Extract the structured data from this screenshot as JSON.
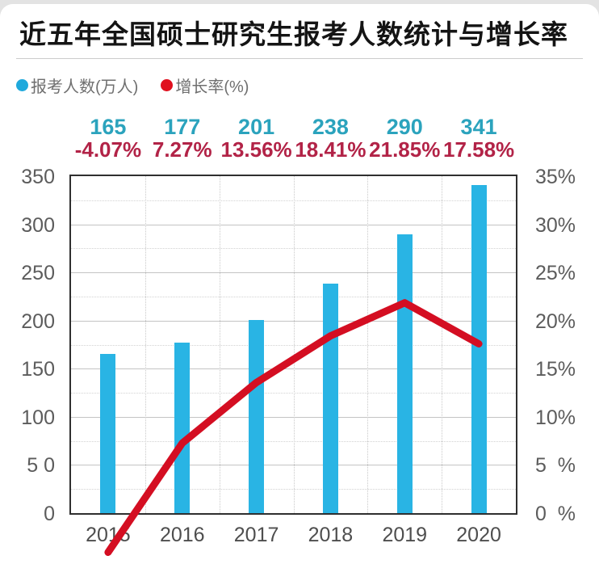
{
  "page": {
    "title": "近五年全国硕士研究生报考人数统计与增长率"
  },
  "legend": [
    {
      "label": "报考人数(万人)",
      "color": "#1fa9dc"
    },
    {
      "label": "增长率(%)",
      "color": "#e0101e"
    }
  ],
  "chart_data": {
    "type": "bar+line combo",
    "title": "近五年全国硕士研究生报考人数统计与增长率",
    "categories": [
      "2015",
      "2016",
      "2017",
      "2018",
      "2019",
      "2020"
    ],
    "series": [
      {
        "name": "报考人数(万人)",
        "type": "bar",
        "axis": "left",
        "color": "#29b4e4",
        "values": [
          165,
          177,
          201,
          238,
          290,
          341
        ],
        "labels": [
          "165",
          "177",
          "201",
          "238",
          "290",
          "341"
        ],
        "label_color": "#2ba3bd"
      },
      {
        "name": "增长率(%)",
        "type": "line",
        "axis": "right",
        "color": "#d40e22",
        "values": [
          -4.07,
          7.27,
          13.56,
          18.41,
          21.85,
          17.58
        ],
        "labels": [
          "-4.07%",
          "7.27%",
          "13.56%",
          "18.41%",
          "21.85%",
          "17.58%"
        ],
        "label_color": "#b22347"
      }
    ],
    "left_axis": {
      "min": 0,
      "max": 350,
      "tick_step": 50,
      "tick_labels_top_to_bottom": [
        "350",
        "300",
        "250",
        "200",
        "150",
        "100",
        "5 0",
        "0"
      ]
    },
    "right_axis": {
      "min": 0,
      "max": 35,
      "tick_step": 5,
      "tick_labels_top_to_bottom": [
        "35%",
        "30%",
        "25%",
        "20%",
        "15%",
        "10%",
        "5  %",
        "0  %"
      ]
    },
    "grid": {
      "horizontal_minor_every": 25,
      "vertical_between_categories": true
    },
    "legend_position": "top-left"
  }
}
